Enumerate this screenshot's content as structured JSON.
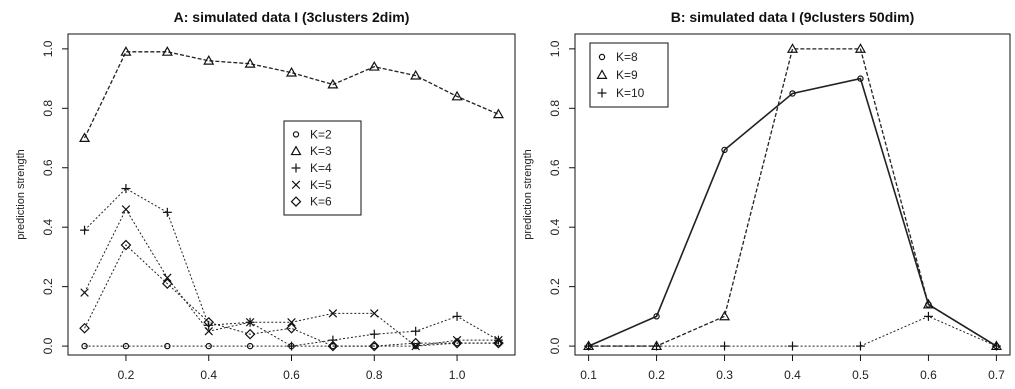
{
  "chart_data": [
    {
      "type": "line",
      "title": "A: simulated data I (3clusters 2dim)",
      "xlabel": "",
      "ylabel": "prediction strength",
      "xlim": [
        0.06,
        1.14
      ],
      "ylim": [
        -0.03,
        1.05
      ],
      "xticks": [
        0.2,
        0.4,
        0.6,
        0.8,
        1.0
      ],
      "yticks": [
        0.0,
        0.2,
        0.4,
        0.6,
        0.8,
        1.0
      ],
      "xtick_labels": [
        "0.2",
        "0.4",
        "0.6",
        "0.8",
        "1.0"
      ],
      "ytick_labels": [
        "0.0",
        "0.2",
        "0.4",
        "0.6",
        "0.8",
        "1.0"
      ],
      "legend": "center-right",
      "x": [
        0.1,
        0.2,
        0.3,
        0.4,
        0.5,
        0.6,
        0.7,
        0.8,
        0.9,
        1.0,
        1.1
      ],
      "series": [
        {
          "name": "K=2",
          "marker": "circle",
          "values": [
            0.0,
            0.0,
            0.0,
            0.0,
            0.0,
            0.0,
            0.0,
            0.0,
            0.0,
            0.01,
            0.01
          ]
        },
        {
          "name": "K=3",
          "marker": "triangle",
          "values": [
            0.7,
            0.99,
            0.99,
            0.96,
            0.95,
            0.92,
            0.88,
            0.94,
            0.91,
            0.84,
            0.78
          ]
        },
        {
          "name": "K=4",
          "marker": "plus",
          "values": [
            0.39,
            0.53,
            0.45,
            0.07,
            0.08,
            0.0,
            0.02,
            0.04,
            0.05,
            0.1,
            0.02
          ]
        },
        {
          "name": "K=5",
          "marker": "cross",
          "values": [
            0.18,
            0.46,
            0.23,
            0.05,
            0.08,
            0.08,
            0.11,
            0.11,
            0.0,
            0.02,
            0.02
          ]
        },
        {
          "name": "K=6",
          "marker": "diamond",
          "values": [
            0.06,
            0.34,
            0.21,
            0.08,
            0.04,
            0.06,
            0.0,
            0.0,
            0.01,
            0.01,
            0.01
          ]
        }
      ]
    },
    {
      "type": "line",
      "title": "B: simulated data I (9clusters 50dim)",
      "xlabel": "",
      "ylabel": "prediction strength",
      "xlim": [
        0.08,
        0.72
      ],
      "ylim": [
        -0.03,
        1.05
      ],
      "xticks": [
        0.1,
        0.2,
        0.3,
        0.4,
        0.5,
        0.6,
        0.7
      ],
      "yticks": [
        0.0,
        0.2,
        0.4,
        0.6,
        0.8,
        1.0
      ],
      "xtick_labels": [
        "0.1",
        "0.2",
        "0.3",
        "0.4",
        "0.5",
        "0.6",
        "0.7"
      ],
      "ytick_labels": [
        "0.0",
        "0.2",
        "0.4",
        "0.6",
        "0.8",
        "1.0"
      ],
      "legend": "top-left",
      "x": [
        0.1,
        0.2,
        0.3,
        0.4,
        0.5,
        0.6,
        0.7
      ],
      "series": [
        {
          "name": "K=8",
          "marker": "circle",
          "values": [
            0.0,
            0.1,
            0.66,
            0.85,
            0.9,
            0.14,
            0.0
          ]
        },
        {
          "name": "K=9",
          "marker": "triangle",
          "values": [
            0.0,
            0.0,
            0.1,
            1.0,
            1.0,
            0.14,
            0.0
          ]
        },
        {
          "name": "K=10",
          "marker": "plus",
          "values": [
            0.0,
            0.0,
            0.0,
            0.0,
            0.0,
            0.1,
            0.0
          ]
        }
      ]
    }
  ]
}
